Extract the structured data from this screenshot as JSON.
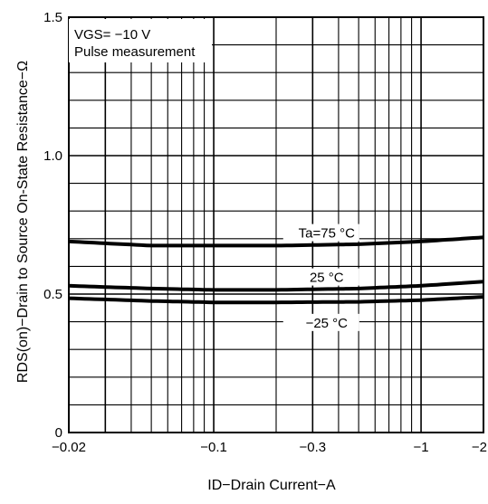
{
  "chart_data": {
    "type": "line",
    "xlabel": "ID−Drain Current−A",
    "ylabel": "RDS(on)−Drain to Source On-State Resistance−Ω",
    "x_scale": "log",
    "xlim": [
      -0.02,
      -2
    ],
    "ylim": [
      0,
      1.5
    ],
    "x_ticks": [
      {
        "value": -0.02,
        "label": "−0.02"
      },
      {
        "value": -0.1,
        "label": "−0.1"
      },
      {
        "value": -0.3,
        "label": "−0.3"
      },
      {
        "value": -1,
        "label": "−1"
      },
      {
        "value": -2,
        "label": "−2"
      }
    ],
    "y_ticks": [
      {
        "value": 0,
        "label": "0"
      },
      {
        "value": 0.5,
        "label": "0.5"
      },
      {
        "value": 1.0,
        "label": "1.0"
      },
      {
        "value": 1.5,
        "label": "1.5"
      }
    ],
    "grid": true,
    "annotation": {
      "line1": "VGS= −10 V",
      "line2": "Pulse measurement"
    },
    "series": [
      {
        "name": "Ta=75 °C",
        "label_x": -0.33,
        "x": [
          -0.02,
          -0.05,
          -0.1,
          -0.2,
          -0.5,
          -1,
          -2
        ],
        "y": [
          0.69,
          0.675,
          0.675,
          0.675,
          0.68,
          0.69,
          0.705
        ]
      },
      {
        "name": "25 °C",
        "label_x": -0.33,
        "x": [
          -0.02,
          -0.05,
          -0.1,
          -0.2,
          -0.5,
          -1,
          -2
        ],
        "y": [
          0.53,
          0.52,
          0.515,
          0.515,
          0.52,
          0.53,
          0.545
        ]
      },
      {
        "name": "−25 °C",
        "label_x": -0.33,
        "x": [
          -0.02,
          -0.05,
          -0.1,
          -0.2,
          -0.5,
          -1,
          -2
        ],
        "y": [
          0.485,
          0.475,
          0.47,
          0.47,
          0.472,
          0.478,
          0.49
        ]
      }
    ]
  }
}
